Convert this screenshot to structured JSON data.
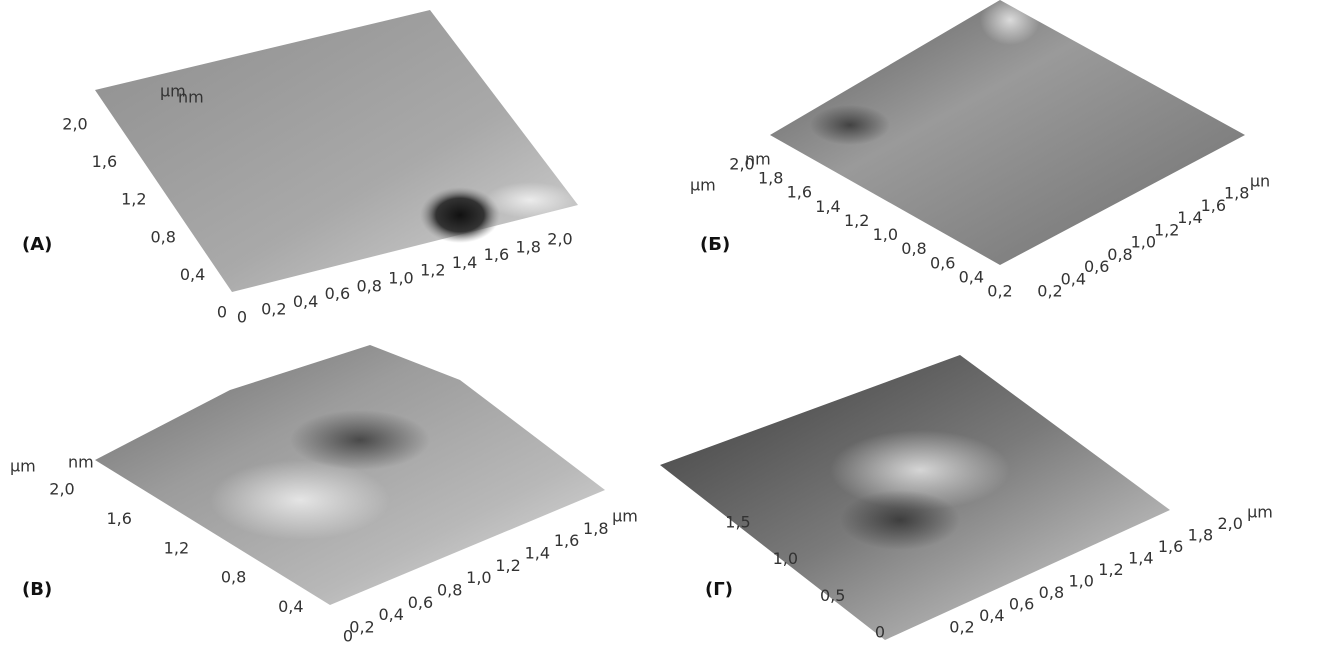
{
  "panels": [
    {
      "label": "(A)",
      "units": [
        "µm",
        "nm"
      ],
      "left_ticks": [
        "2,0",
        "1,6",
        "1,2",
        "0,8",
        "0,4",
        "0"
      ],
      "bottom_ticks": [
        "0",
        "0,2",
        "0,4",
        "0,6",
        "0,8",
        "1,0",
        "1,2",
        "1,4",
        "1,6",
        "1,8",
        "2,0"
      ]
    },
    {
      "label": "(Б)",
      "units": [
        "nm",
        "µm"
      ],
      "left_ticks": [
        "2,0",
        "1,8",
        "1,6",
        "1,4",
        "1,2",
        "1,0",
        "0,8",
        "0,6",
        "0,4",
        "0,2"
      ],
      "bottom_ticks": [
        "0,2",
        "0,4",
        "0,6",
        "0,8",
        "1,0",
        "1,2",
        "1,4",
        "1,6",
        "1,8",
        "µn"
      ]
    },
    {
      "label": "(В)",
      "units": [
        "µm",
        "nm"
      ],
      "left_ticks": [
        "2,0",
        "1,6",
        "1,2",
        "0,8",
        "0,4",
        "0"
      ],
      "bottom_ticks": [
        "0,2",
        "0,4",
        "0,6",
        "0,8",
        "1,0",
        "1,2",
        "1,4",
        "1,6",
        "1,8",
        "µm"
      ]
    },
    {
      "label": "(Г)",
      "units": [],
      "left_ticks": [
        "1,5",
        "1,0",
        "0,5",
        "0"
      ],
      "bottom_ticks": [
        "0,2",
        "0,4",
        "0,6",
        "0,8",
        "1,0",
        "1,2",
        "1,4",
        "1,6",
        "1,8",
        "2,0",
        "µm"
      ]
    }
  ]
}
